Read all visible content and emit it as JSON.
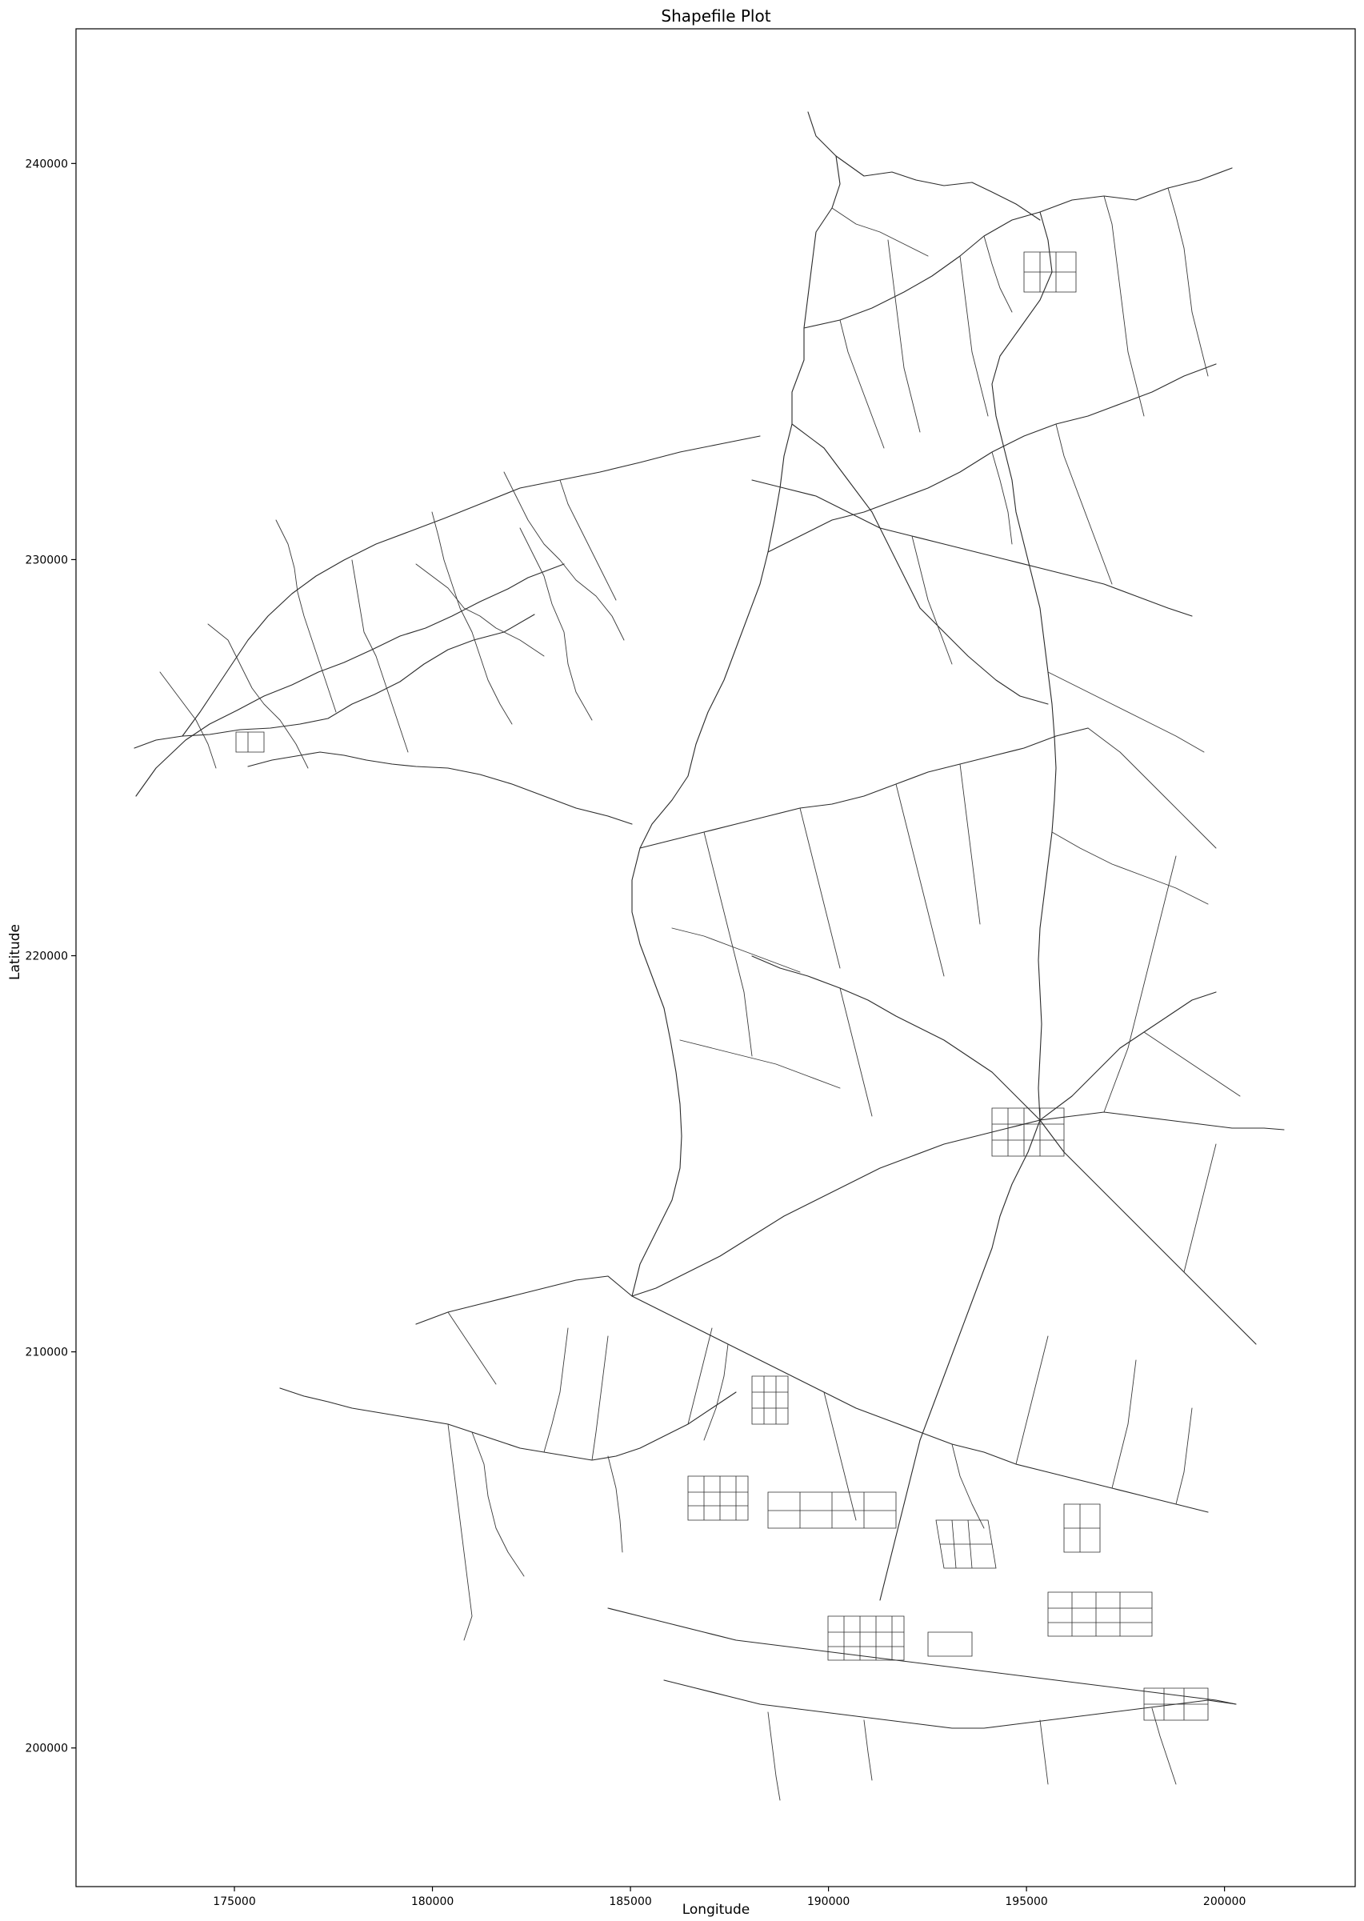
{
  "map": {
    "title": "Shapefile Plot",
    "xlabel": "Longitude",
    "ylabel": "Latitude",
    "xlim": [
      171000,
      203300
    ],
    "ylim": [
      196500,
      243400
    ],
    "x_ticks": [
      175000,
      180000,
      185000,
      190000,
      195000,
      200000
    ],
    "y_ticks": [
      200000,
      210000,
      220000,
      230000,
      240000
    ],
    "grid": false,
    "line_color": "#2b2b2b",
    "background": "#ffffff"
  }
}
